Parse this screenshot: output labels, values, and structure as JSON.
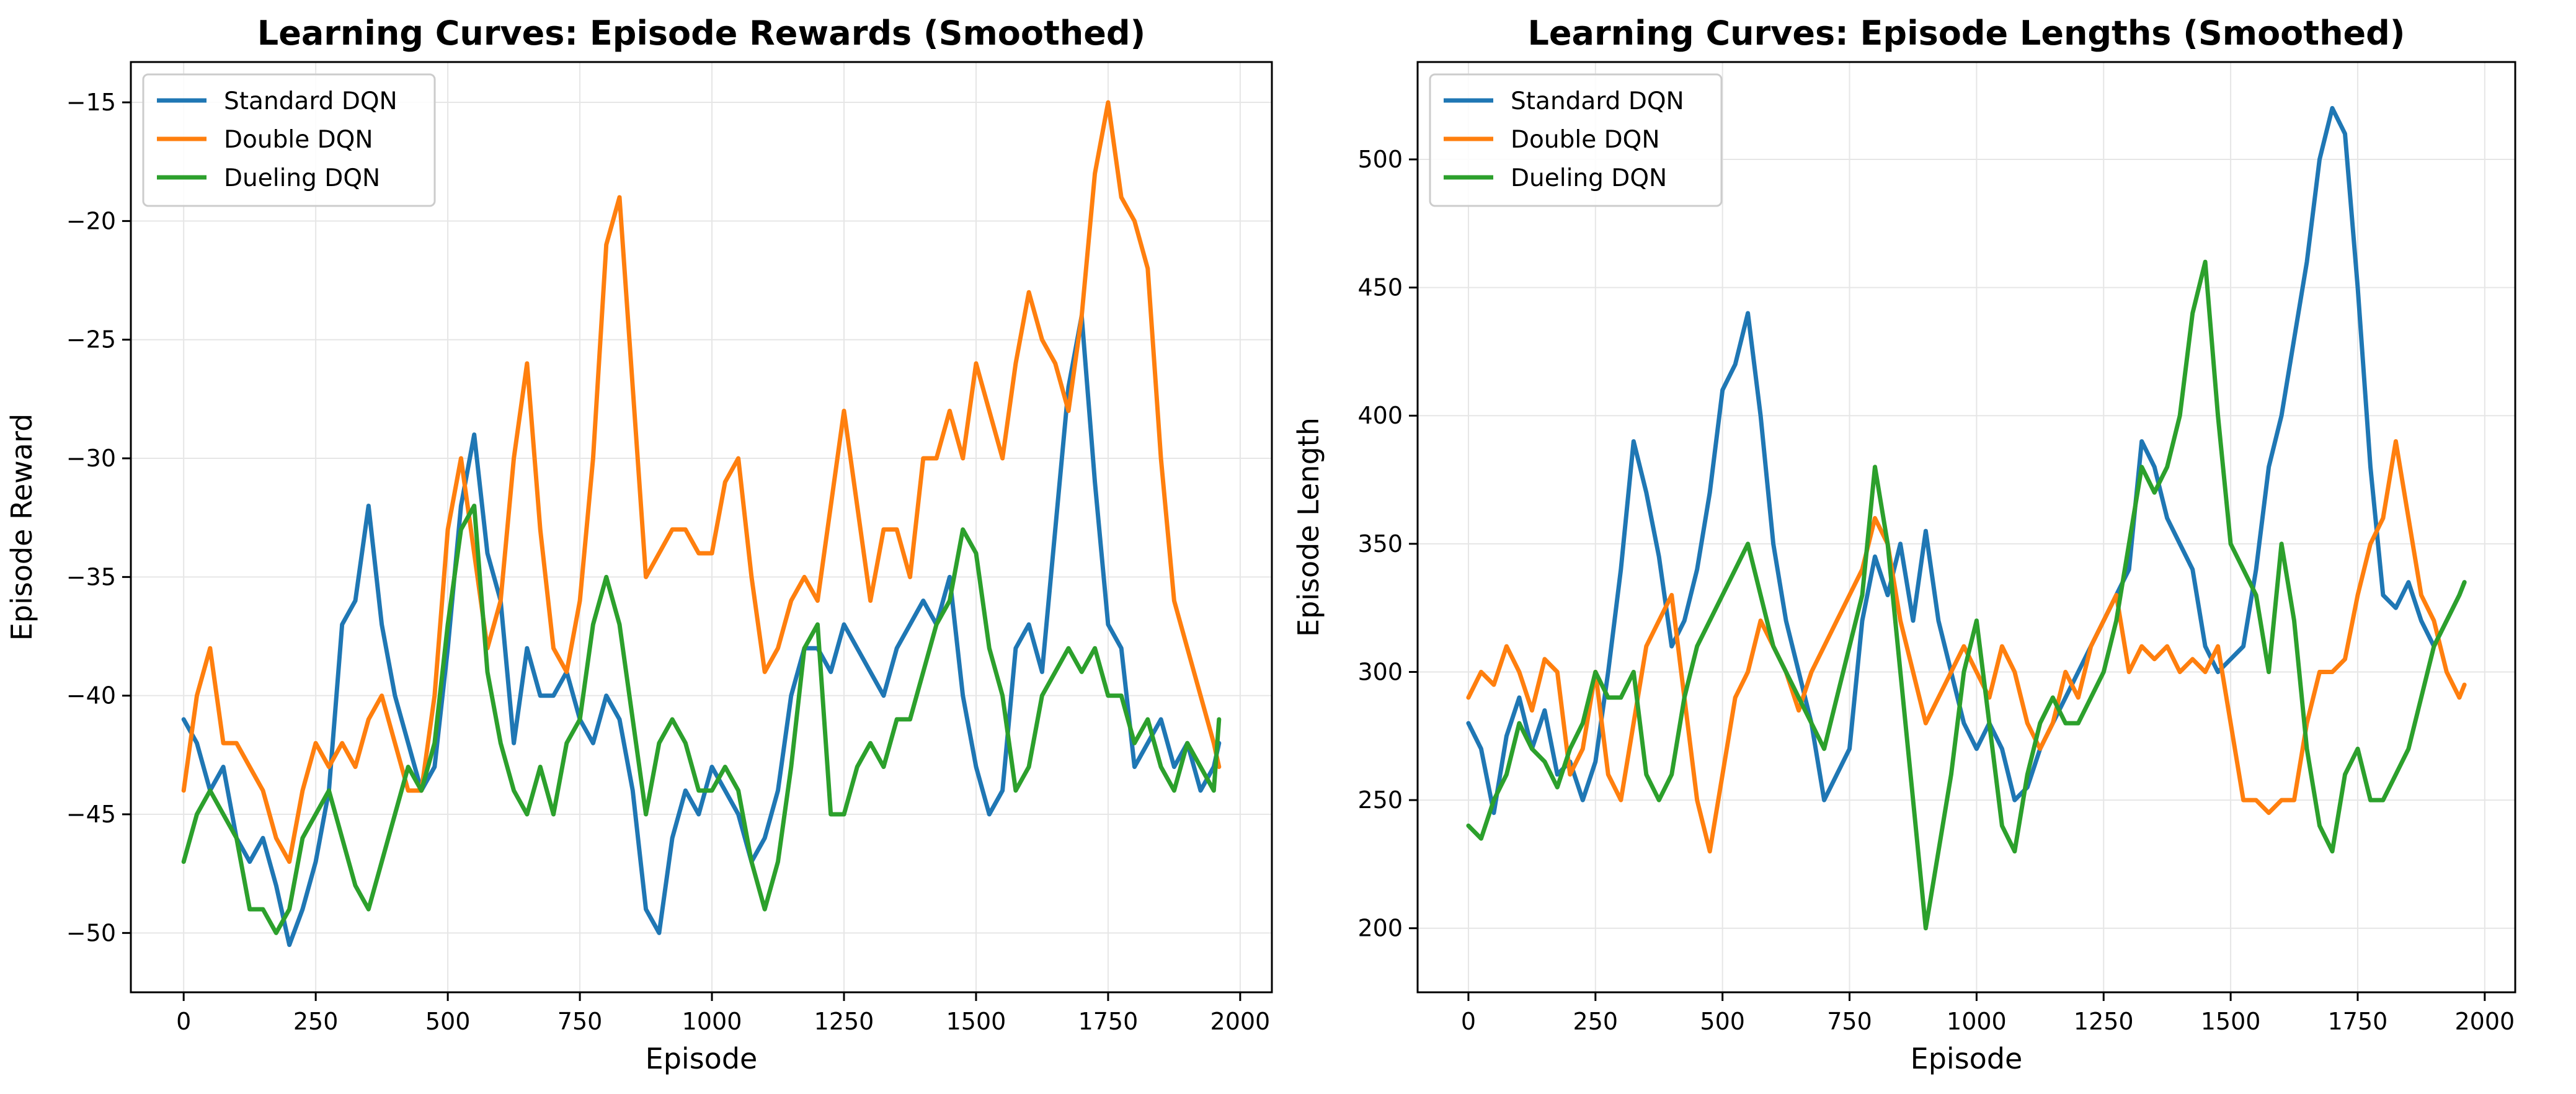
{
  "colors": {
    "standard": "#1f77b4",
    "double": "#ff7f0e",
    "dueling": "#2ca02c",
    "grid": "#e6e6e6",
    "axis": "#000000"
  },
  "chart_data": [
    {
      "type": "line",
      "title": "Learning Curves: Episode Rewards (Smoothed)",
      "xlabel": "Episode",
      "ylabel": "Episode Reward",
      "xlim": [
        -100,
        2060
      ],
      "ylim": [
        -52.5,
        -13.3
      ],
      "xticks": [
        0,
        250,
        500,
        750,
        1000,
        1250,
        1500,
        1750,
        2000
      ],
      "yticks": [
        -50,
        -45,
        -40,
        -35,
        -30,
        -25,
        -20,
        -15
      ],
      "grid": true,
      "legend": "top-left",
      "series": [
        {
          "name": "Standard DQN",
          "color": "standard",
          "x": [
            0,
            25,
            50,
            75,
            100,
            125,
            150,
            175,
            200,
            225,
            250,
            275,
            300,
            325,
            350,
            375,
            400,
            425,
            450,
            475,
            500,
            525,
            550,
            575,
            600,
            625,
            650,
            675,
            700,
            725,
            750,
            775,
            800,
            825,
            850,
            875,
            900,
            925,
            950,
            975,
            1000,
            1025,
            1050,
            1075,
            1100,
            1125,
            1150,
            1175,
            1200,
            1225,
            1250,
            1275,
            1300,
            1325,
            1350,
            1375,
            1400,
            1425,
            1450,
            1475,
            1500,
            1525,
            1550,
            1575,
            1600,
            1625,
            1650,
            1675,
            1700,
            1725,
            1750,
            1775,
            1800,
            1825,
            1850,
            1875,
            1900,
            1925,
            1950,
            1960
          ],
          "y": [
            -41,
            -42,
            -44,
            -43,
            -46,
            -47,
            -46,
            -48,
            -50.5,
            -49,
            -47,
            -44,
            -37,
            -36,
            -32,
            -37,
            -40,
            -42,
            -44,
            -43,
            -38,
            -32,
            -29,
            -34,
            -36,
            -42,
            -38,
            -40,
            -40,
            -39,
            -41,
            -42,
            -40,
            -41,
            -44,
            -49,
            -50,
            -46,
            -44,
            -45,
            -43,
            -44,
            -45,
            -47,
            -46,
            -44,
            -40,
            -38,
            -38,
            -39,
            -37,
            -38,
            -39,
            -40,
            -38,
            -37,
            -36,
            -37,
            -35,
            -40,
            -43,
            -45,
            -44,
            -38,
            -37,
            -39,
            -33,
            -27,
            -24,
            -31,
            -37,
            -38,
            -43,
            -42,
            -41,
            -43,
            -42,
            -44,
            -43,
            -42
          ]
        },
        {
          "name": "Double DQN",
          "color": "double",
          "x": [
            0,
            25,
            50,
            75,
            100,
            125,
            150,
            175,
            200,
            225,
            250,
            275,
            300,
            325,
            350,
            375,
            400,
            425,
            450,
            475,
            500,
            525,
            550,
            575,
            600,
            625,
            650,
            675,
            700,
            725,
            750,
            775,
            800,
            825,
            850,
            875,
            900,
            925,
            950,
            975,
            1000,
            1025,
            1050,
            1075,
            1100,
            1125,
            1150,
            1175,
            1200,
            1225,
            1250,
            1275,
            1300,
            1325,
            1350,
            1375,
            1400,
            1425,
            1450,
            1475,
            1500,
            1525,
            1550,
            1575,
            1600,
            1625,
            1650,
            1675,
            1700,
            1725,
            1750,
            1775,
            1800,
            1825,
            1850,
            1875,
            1900,
            1925,
            1950,
            1960
          ],
          "y": [
            -44,
            -40,
            -38,
            -42,
            -42,
            -43,
            -44,
            -46,
            -47,
            -44,
            -42,
            -43,
            -42,
            -43,
            -41,
            -40,
            -42,
            -44,
            -44,
            -40,
            -33,
            -30,
            -34,
            -38,
            -36,
            -30,
            -26,
            -33,
            -38,
            -39,
            -36,
            -30,
            -21,
            -19,
            -27,
            -35,
            -34,
            -33,
            -33,
            -34,
            -34,
            -31,
            -30,
            -35,
            -39,
            -38,
            -36,
            -35,
            -36,
            -32,
            -28,
            -32,
            -36,
            -33,
            -33,
            -35,
            -30,
            -30,
            -28,
            -30,
            -26,
            -28,
            -30,
            -26,
            -23,
            -25,
            -26,
            -28,
            -24,
            -18,
            -15,
            -19,
            -20,
            -22,
            -30,
            -36,
            -38,
            -40,
            -42,
            -43
          ]
        },
        {
          "name": "Dueling DQN",
          "color": "dueling",
          "x": [
            0,
            25,
            50,
            75,
            100,
            125,
            150,
            175,
            200,
            225,
            250,
            275,
            300,
            325,
            350,
            375,
            400,
            425,
            450,
            475,
            500,
            525,
            550,
            575,
            600,
            625,
            650,
            675,
            700,
            725,
            750,
            775,
            800,
            825,
            850,
            875,
            900,
            925,
            950,
            975,
            1000,
            1025,
            1050,
            1075,
            1100,
            1125,
            1150,
            1175,
            1200,
            1225,
            1250,
            1275,
            1300,
            1325,
            1350,
            1375,
            1400,
            1425,
            1450,
            1475,
            1500,
            1525,
            1550,
            1575,
            1600,
            1625,
            1650,
            1675,
            1700,
            1725,
            1750,
            1775,
            1800,
            1825,
            1850,
            1875,
            1900,
            1925,
            1950,
            1960
          ],
          "y": [
            -47,
            -45,
            -44,
            -45,
            -46,
            -49,
            -49,
            -50,
            -49,
            -46,
            -45,
            -44,
            -46,
            -48,
            -49,
            -47,
            -45,
            -43,
            -44,
            -42,
            -37,
            -33,
            -32,
            -39,
            -42,
            -44,
            -45,
            -43,
            -45,
            -42,
            -41,
            -37,
            -35,
            -37,
            -41,
            -45,
            -42,
            -41,
            -42,
            -44,
            -44,
            -43,
            -44,
            -47,
            -49,
            -47,
            -43,
            -38,
            -37,
            -45,
            -45,
            -43,
            -42,
            -43,
            -41,
            -41,
            -39,
            -37,
            -36,
            -33,
            -34,
            -38,
            -40,
            -44,
            -43,
            -40,
            -39,
            -38,
            -39,
            -38,
            -40,
            -40,
            -42,
            -41,
            -43,
            -44,
            -42,
            -43,
            -44,
            -41
          ]
        }
      ]
    },
    {
      "type": "line",
      "title": "Learning Curves: Episode Lengths (Smoothed)",
      "xlabel": "Episode",
      "ylabel": "Episode Length",
      "xlim": [
        -100,
        2060
      ],
      "ylim": [
        175,
        538
      ],
      "xticks": [
        0,
        250,
        500,
        750,
        1000,
        1250,
        1500,
        1750,
        2000
      ],
      "yticks": [
        200,
        250,
        300,
        350,
        400,
        450,
        500
      ],
      "grid": true,
      "legend": "top-left",
      "series": [
        {
          "name": "Standard DQN",
          "color": "standard",
          "x": [
            0,
            25,
            50,
            75,
            100,
            125,
            150,
            175,
            200,
            225,
            250,
            275,
            300,
            325,
            350,
            375,
            400,
            425,
            450,
            475,
            500,
            525,
            550,
            575,
            600,
            625,
            650,
            675,
            700,
            725,
            750,
            775,
            800,
            825,
            850,
            875,
            900,
            925,
            950,
            975,
            1000,
            1025,
            1050,
            1075,
            1100,
            1125,
            1150,
            1175,
            1200,
            1225,
            1250,
            1275,
            1300,
            1325,
            1350,
            1375,
            1400,
            1425,
            1450,
            1475,
            1500,
            1525,
            1550,
            1575,
            1600,
            1625,
            1650,
            1675,
            1700,
            1725,
            1750,
            1775,
            1800,
            1825,
            1850,
            1875,
            1900,
            1925,
            1950,
            1960
          ],
          "y": [
            280,
            270,
            245,
            275,
            290,
            270,
            285,
            260,
            265,
            250,
            265,
            300,
            340,
            390,
            370,
            345,
            310,
            320,
            340,
            370,
            410,
            420,
            440,
            400,
            350,
            320,
            300,
            280,
            250,
            260,
            270,
            320,
            345,
            330,
            350,
            320,
            355,
            320,
            300,
            280,
            270,
            280,
            270,
            250,
            255,
            270,
            280,
            290,
            300,
            310,
            320,
            330,
            340,
            390,
            380,
            360,
            350,
            340,
            310,
            300,
            305,
            310,
            340,
            380,
            400,
            430,
            460,
            500,
            520,
            510,
            450,
            380,
            330,
            325,
            335,
            320,
            310,
            320,
            330,
            335
          ]
        },
        {
          "name": "Double DQN",
          "color": "double",
          "x": [
            0,
            25,
            50,
            75,
            100,
            125,
            150,
            175,
            200,
            225,
            250,
            275,
            300,
            325,
            350,
            375,
            400,
            425,
            450,
            475,
            500,
            525,
            550,
            575,
            600,
            625,
            650,
            675,
            700,
            725,
            750,
            775,
            800,
            825,
            850,
            875,
            900,
            925,
            950,
            975,
            1000,
            1025,
            1050,
            1075,
            1100,
            1125,
            1150,
            1175,
            1200,
            1225,
            1250,
            1275,
            1300,
            1325,
            1350,
            1375,
            1400,
            1425,
            1450,
            1475,
            1500,
            1525,
            1550,
            1575,
            1600,
            1625,
            1650,
            1675,
            1700,
            1725,
            1750,
            1775,
            1800,
            1825,
            1850,
            1875,
            1900,
            1925,
            1950,
            1960
          ],
          "y": [
            290,
            300,
            295,
            310,
            300,
            285,
            305,
            300,
            260,
            270,
            300,
            260,
            250,
            280,
            310,
            320,
            330,
            290,
            250,
            230,
            260,
            290,
            300,
            320,
            310,
            300,
            285,
            300,
            310,
            320,
            330,
            340,
            360,
            350,
            320,
            300,
            280,
            290,
            300,
            310,
            300,
            290,
            310,
            300,
            280,
            270,
            280,
            300,
            290,
            310,
            320,
            330,
            300,
            310,
            305,
            310,
            300,
            305,
            300,
            310,
            280,
            250,
            250,
            245,
            250,
            250,
            280,
            300,
            300,
            305,
            330,
            350,
            360,
            390,
            360,
            330,
            320,
            300,
            290,
            295
          ]
        },
        {
          "name": "Dueling DQN",
          "color": "dueling",
          "x": [
            0,
            25,
            50,
            75,
            100,
            125,
            150,
            175,
            200,
            225,
            250,
            275,
            300,
            325,
            350,
            375,
            400,
            425,
            450,
            475,
            500,
            525,
            550,
            575,
            600,
            625,
            650,
            675,
            700,
            725,
            750,
            775,
            800,
            825,
            850,
            875,
            900,
            925,
            950,
            975,
            1000,
            1025,
            1050,
            1075,
            1100,
            1125,
            1150,
            1175,
            1200,
            1225,
            1250,
            1275,
            1300,
            1325,
            1350,
            1375,
            1400,
            1425,
            1450,
            1475,
            1500,
            1525,
            1550,
            1575,
            1600,
            1625,
            1650,
            1675,
            1700,
            1725,
            1750,
            1775,
            1800,
            1825,
            1850,
            1875,
            1900,
            1925,
            1950,
            1960
          ],
          "y": [
            240,
            235,
            250,
            260,
            280,
            270,
            265,
            255,
            270,
            280,
            300,
            290,
            290,
            300,
            260,
            250,
            260,
            290,
            310,
            320,
            330,
            340,
            350,
            330,
            310,
            300,
            290,
            280,
            270,
            290,
            310,
            330,
            380,
            350,
            300,
            250,
            200,
            230,
            260,
            300,
            320,
            280,
            240,
            230,
            260,
            280,
            290,
            280,
            280,
            290,
            300,
            320,
            350,
            380,
            370,
            380,
            400,
            440,
            460,
            400,
            350,
            340,
            330,
            300,
            350,
            320,
            270,
            240,
            230,
            260,
            270,
            250,
            250,
            260,
            270,
            290,
            310,
            320,
            330,
            335
          ]
        }
      ]
    }
  ]
}
